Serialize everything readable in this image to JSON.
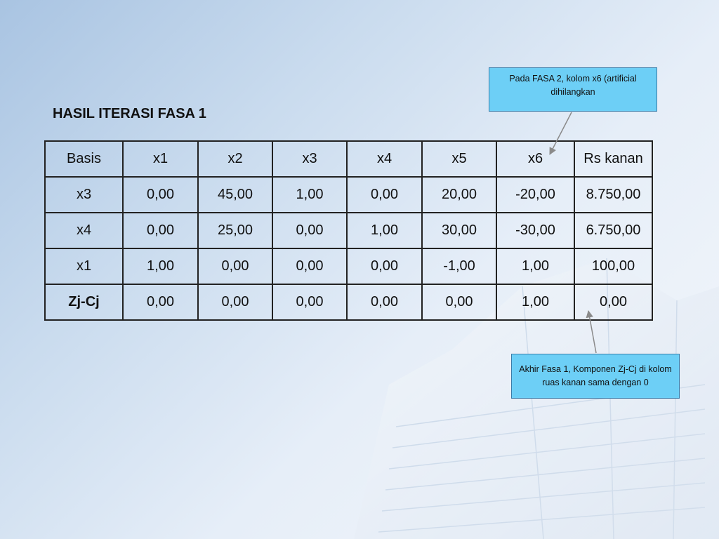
{
  "slide": {
    "title": "HASIL ITERASI FASA 1"
  },
  "table": {
    "headers": [
      "Basis",
      "x1",
      "x2",
      "x3",
      "x4",
      "x5",
      "x6",
      "Rs kanan"
    ],
    "rows": [
      [
        "x3",
        "0,00",
        "45,00",
        "1,00",
        "0,00",
        "20,00",
        "-20,00",
        "8.750,00"
      ],
      [
        "x4",
        "0,00",
        "25,00",
        "0,00",
        "1,00",
        "30,00",
        "-30,00",
        "6.750,00"
      ],
      [
        "x1",
        "1,00",
        "0,00",
        "0,00",
        "0,00",
        "-1,00",
        "1,00",
        "100,00"
      ],
      [
        "Zj-Cj",
        "0,00",
        "0,00",
        "0,00",
        "0,00",
        "0,00",
        "1,00",
        "0,00"
      ]
    ]
  },
  "callouts": {
    "top": "Pada FASA 2, kolom x6 (artificial dihilangkan",
    "bottom": "Akhir Fasa 1, Komponen Zj-Cj di kolom ruas kanan sama dengan 0"
  },
  "colors": {
    "callout_fill": "#6dcff6",
    "callout_border": "#3a7ca8",
    "arrow": "#8a8a8a"
  }
}
